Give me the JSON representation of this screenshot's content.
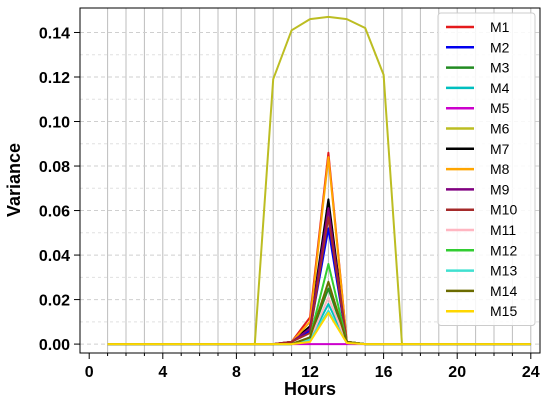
{
  "chart_data": {
    "type": "line",
    "xlabel": "Hours",
    "ylabel": "Variance",
    "xlim": [
      -0.5,
      24.5
    ],
    "ylim": [
      -0.004,
      0.151
    ],
    "x_ticks": [
      0,
      4,
      8,
      12,
      16,
      20,
      24
    ],
    "x_tick_labels": [
      "0",
      "4",
      "8",
      "12",
      "16",
      "20",
      "24"
    ],
    "y_ticks": [
      0.0,
      0.02,
      0.04,
      0.06,
      0.08,
      0.1,
      0.12,
      0.14
    ],
    "y_tick_labels": [
      "0.00",
      "0.02",
      "0.04",
      "0.06",
      "0.08",
      "0.10",
      "0.12",
      "0.14"
    ],
    "grid": true,
    "legend_position": "right",
    "x": [
      1,
      2,
      3,
      4,
      5,
      6,
      7,
      8,
      9,
      10,
      11,
      12,
      13,
      14,
      15,
      16,
      17,
      18,
      19,
      20,
      21,
      22,
      23,
      24
    ],
    "series": [
      {
        "name": "M1",
        "color": "#e41a1c",
        "values": [
          0,
          0,
          0,
          0,
          0,
          0,
          0,
          0,
          0,
          0,
          0.001,
          0.012,
          0.086,
          0.001,
          0,
          0,
          0,
          0,
          0,
          0,
          0,
          0,
          0,
          0
        ]
      },
      {
        "name": "M2",
        "color": "#0000ee",
        "values": [
          0,
          0,
          0,
          0,
          0,
          0,
          0,
          0,
          0,
          0,
          0.001,
          0.006,
          0.052,
          0.001,
          0,
          0,
          0,
          0,
          0,
          0,
          0,
          0,
          0,
          0
        ]
      },
      {
        "name": "M3",
        "color": "#228b22",
        "values": [
          0,
          0,
          0,
          0,
          0,
          0,
          0,
          0,
          0,
          0,
          0,
          0.003,
          0.025,
          0.001,
          0,
          0,
          0,
          0,
          0,
          0,
          0,
          0,
          0,
          0
        ]
      },
      {
        "name": "M4",
        "color": "#00bfbf",
        "values": [
          0,
          0,
          0,
          0,
          0,
          0,
          0,
          0,
          0,
          0,
          0,
          0.002,
          0.018,
          0.0005,
          0,
          0,
          0,
          0,
          0,
          0,
          0,
          0,
          0,
          0
        ]
      },
      {
        "name": "M5",
        "color": "#cc00cc",
        "values": [
          0,
          0,
          0,
          0,
          0,
          0,
          0,
          0,
          0,
          0,
          0,
          0,
          0,
          0,
          0,
          0,
          0,
          0,
          0,
          0,
          0,
          0,
          0,
          0
        ]
      },
      {
        "name": "M6",
        "color": "#bcbd22",
        "values": [
          0,
          0,
          0,
          0,
          0,
          0,
          0,
          0,
          0,
          0.119,
          0.141,
          0.146,
          0.147,
          0.146,
          0.142,
          0.121,
          0,
          0,
          0,
          0,
          0,
          0,
          0,
          0
        ]
      },
      {
        "name": "M7",
        "color": "#000000",
        "values": [
          0,
          0,
          0,
          0,
          0,
          0,
          0,
          0,
          0,
          0,
          0.001,
          0.008,
          0.065,
          0.001,
          0,
          0,
          0,
          0,
          0,
          0,
          0,
          0,
          0,
          0
        ]
      },
      {
        "name": "M8",
        "color": "#ffa500",
        "values": [
          0,
          0,
          0,
          0,
          0,
          0,
          0,
          0,
          0,
          0,
          0.001,
          0.01,
          0.084,
          0.001,
          0,
          0,
          0,
          0,
          0,
          0,
          0,
          0,
          0,
          0
        ]
      },
      {
        "name": "M9",
        "color": "#800080",
        "values": [
          0,
          0,
          0,
          0,
          0,
          0,
          0,
          0,
          0,
          0,
          0.001,
          0.007,
          0.061,
          0.001,
          0,
          0,
          0,
          0,
          0,
          0,
          0,
          0,
          0,
          0
        ]
      },
      {
        "name": "M10",
        "color": "#a52a2a",
        "values": [
          0,
          0,
          0,
          0,
          0,
          0,
          0,
          0,
          0,
          0,
          0.001,
          0.005,
          0.057,
          0.001,
          0,
          0,
          0,
          0,
          0,
          0,
          0,
          0,
          0,
          0
        ]
      },
      {
        "name": "M11",
        "color": "#ffb6c1",
        "values": [
          0,
          0,
          0,
          0,
          0,
          0,
          0,
          0,
          0,
          0,
          0,
          0.002,
          0.021,
          0.0005,
          0,
          0,
          0,
          0,
          0,
          0,
          0,
          0,
          0,
          0
        ]
      },
      {
        "name": "M12",
        "color": "#32cd32",
        "values": [
          0,
          0,
          0,
          0,
          0,
          0,
          0,
          0,
          0,
          0,
          0,
          0.003,
          0.036,
          0.001,
          0,
          0,
          0,
          0,
          0,
          0,
          0,
          0,
          0,
          0
        ]
      },
      {
        "name": "M13",
        "color": "#40e0d0",
        "values": [
          0,
          0,
          0,
          0,
          0,
          0,
          0,
          0,
          0,
          0,
          0,
          0.002,
          0.015,
          0.0005,
          0,
          0,
          0,
          0,
          0,
          0,
          0,
          0,
          0,
          0
        ]
      },
      {
        "name": "M14",
        "color": "#6b6b00",
        "values": [
          0,
          0,
          0,
          0,
          0,
          0,
          0,
          0,
          0,
          0,
          0,
          0.003,
          0.028,
          0.001,
          0,
          0,
          0,
          0,
          0,
          0,
          0,
          0,
          0,
          0
        ]
      },
      {
        "name": "M15",
        "color": "#ffd700",
        "values": [
          0,
          0,
          0,
          0,
          0,
          0,
          0,
          0,
          0,
          0,
          0,
          0.001,
          0.014,
          0.0005,
          0,
          0,
          0,
          0,
          0,
          0,
          0,
          0,
          0,
          0
        ]
      }
    ]
  }
}
